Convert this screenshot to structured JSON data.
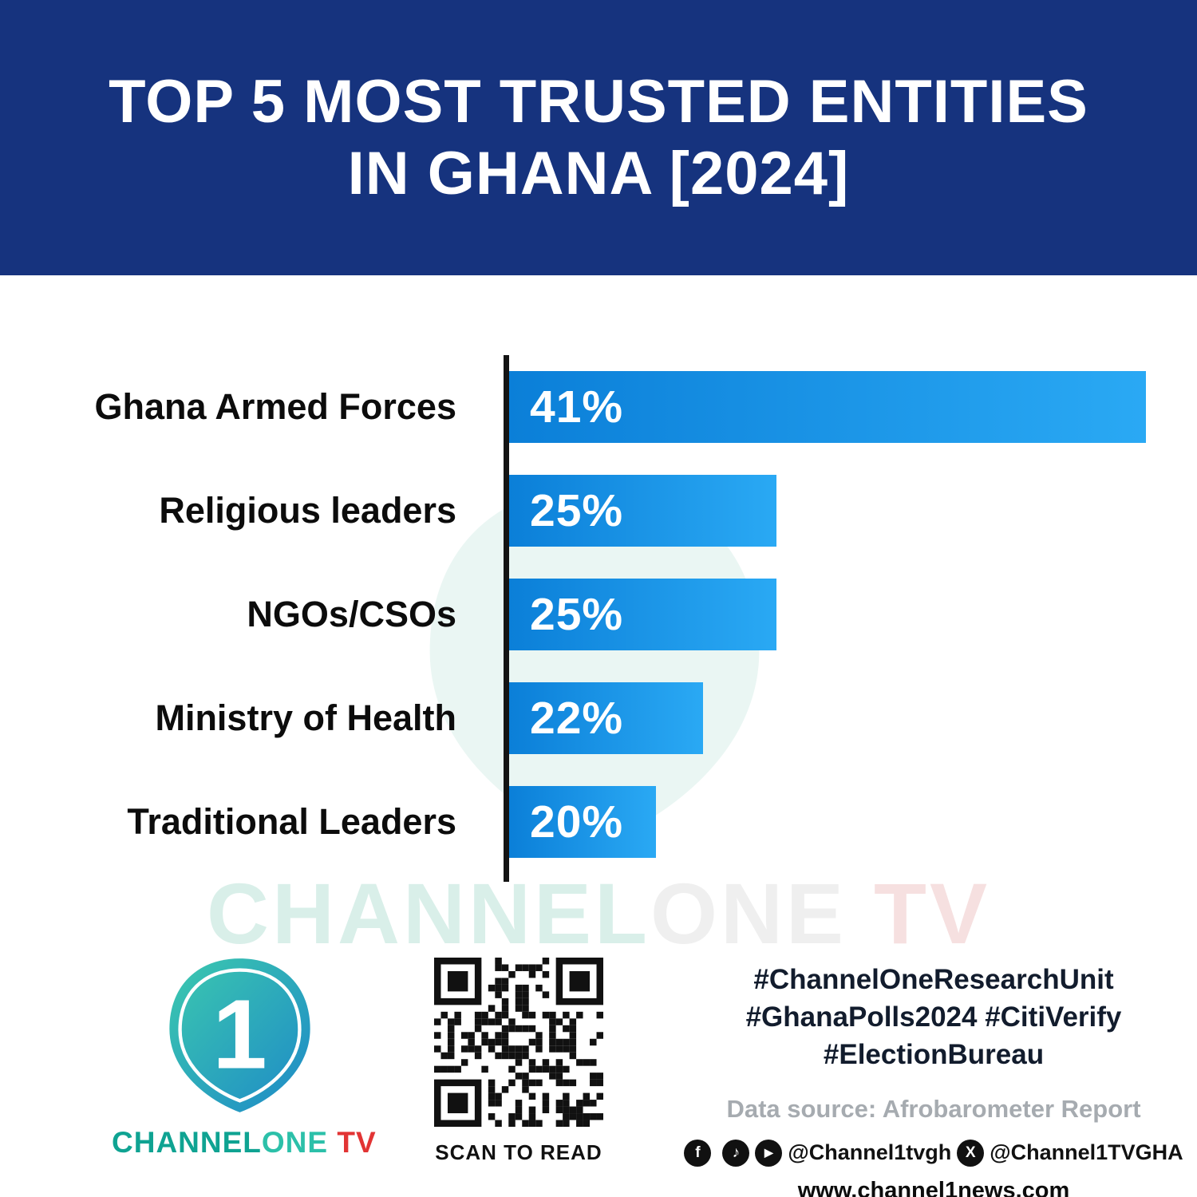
{
  "header": {
    "title_line1": "TOP 5 MOST TRUSTED ENTITIES",
    "title_line2": "IN GHANA [2024]"
  },
  "chart_data": {
    "type": "bar",
    "orientation": "horizontal",
    "title": "TOP 5 MOST TRUSTED ENTITIES IN GHANA [2024]",
    "categories": [
      "Ghana Armed Forces",
      "Religious leaders",
      "NGOs/CSOs",
      "Ministry of Health",
      "Traditional Leaders"
    ],
    "values": [
      41,
      25,
      25,
      22,
      20
    ],
    "value_labels": [
      "41%",
      "25%",
      "25%",
      "22%",
      "20%"
    ],
    "unit": "%",
    "xlim": [
      0,
      41
    ],
    "grid": false,
    "legend": false,
    "bar_color_gradient": [
      "#0b7fd8",
      "#2aa9f4"
    ],
    "display_widths_pct": [
      100,
      42,
      42,
      30.5,
      23
    ],
    "source": "Afrobarometer Report"
  },
  "watermark": {
    "part1": "CHANNEL",
    "part2": "ONE",
    "part3": " TV"
  },
  "footer": {
    "logo_numeral": "1",
    "brand_part1": "CHANNEL",
    "brand_part2": "ONE",
    "brand_part3": " TV",
    "qr_caption": "SCAN TO READ",
    "hashtags": [
      "#ChannelOneResearchUnit",
      "#GhanaPolls2024 #CitiVerify",
      "#ElectionBureau"
    ],
    "data_source": "Data source: Afrobarometer Report",
    "social_icons": [
      "facebook-icon",
      "instagram-icon",
      "tiktok-icon",
      "youtube-icon",
      "x-icon"
    ],
    "social_handle_1": "@Channel1tvgh",
    "social_handle_2": "@Channel1TVGHA",
    "website": "www.channel1news.com",
    "facebook_glyph": "f",
    "tiktok_glyph": "♪",
    "youtube_glyph": "▶",
    "x_glyph": "X"
  },
  "colors": {
    "header_bg": "#16337E",
    "bar_start": "#0b7fd8",
    "bar_end": "#2aa9f4",
    "axis": "#141414",
    "brand_teal": "#0fa392",
    "brand_red": "#e23434"
  }
}
